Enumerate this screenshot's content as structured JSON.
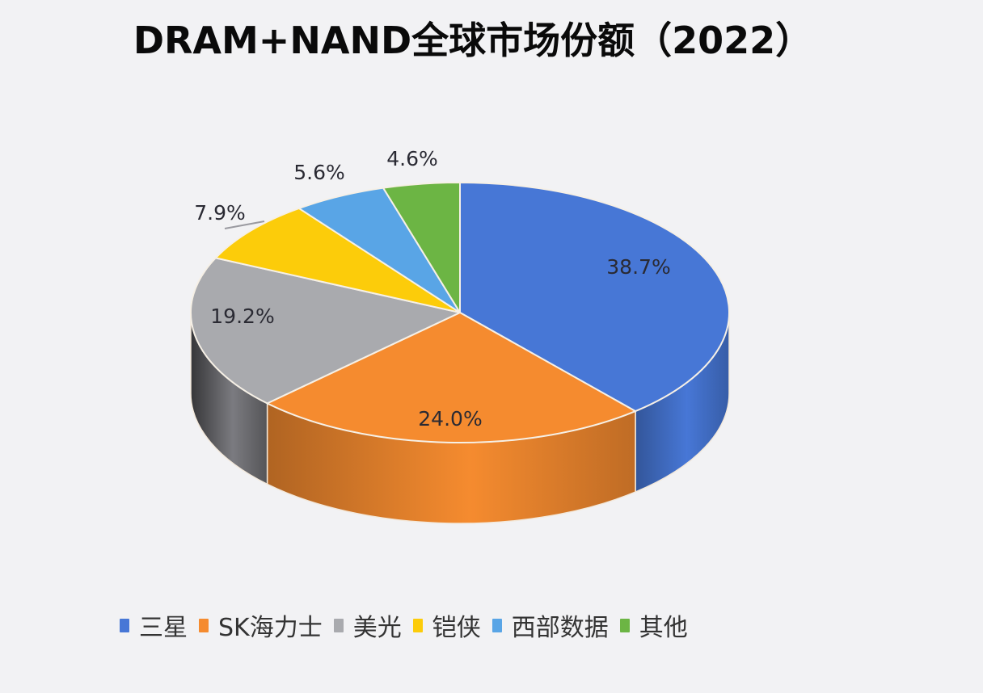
{
  "chart_data": {
    "type": "pie",
    "style": "3d",
    "title": "DRAM+NAND全球市场份额（2022）",
    "categories": [
      "三星",
      "SK海力士",
      "美光",
      "铠侠",
      "西部数据",
      "其他"
    ],
    "values": [
      38.7,
      24.0,
      19.2,
      7.9,
      5.6,
      4.6
    ],
    "labels": [
      "38.7%",
      "24.0%",
      "19.2%",
      "7.9%",
      "5.6%",
      "4.6%"
    ],
    "colors": [
      "#4777d6",
      "#f58b2f",
      "#a9aaae",
      "#fccc0a",
      "#59a5e6",
      "#6cb544"
    ],
    "legend_position": "bottom",
    "unit": "%"
  },
  "title": "DRAM+NAND全球市场份额（2022）",
  "legend": [
    {
      "label": "三星",
      "color": "#4777d6"
    },
    {
      "label": "SK海力士",
      "color": "#f58b2f"
    },
    {
      "label": "美光",
      "color": "#a9aaae"
    },
    {
      "label": "铠侠",
      "color": "#fccc0a"
    },
    {
      "label": "西部数据",
      "color": "#59a5e6"
    },
    {
      "label": "其他",
      "color": "#6cb544"
    }
  ]
}
